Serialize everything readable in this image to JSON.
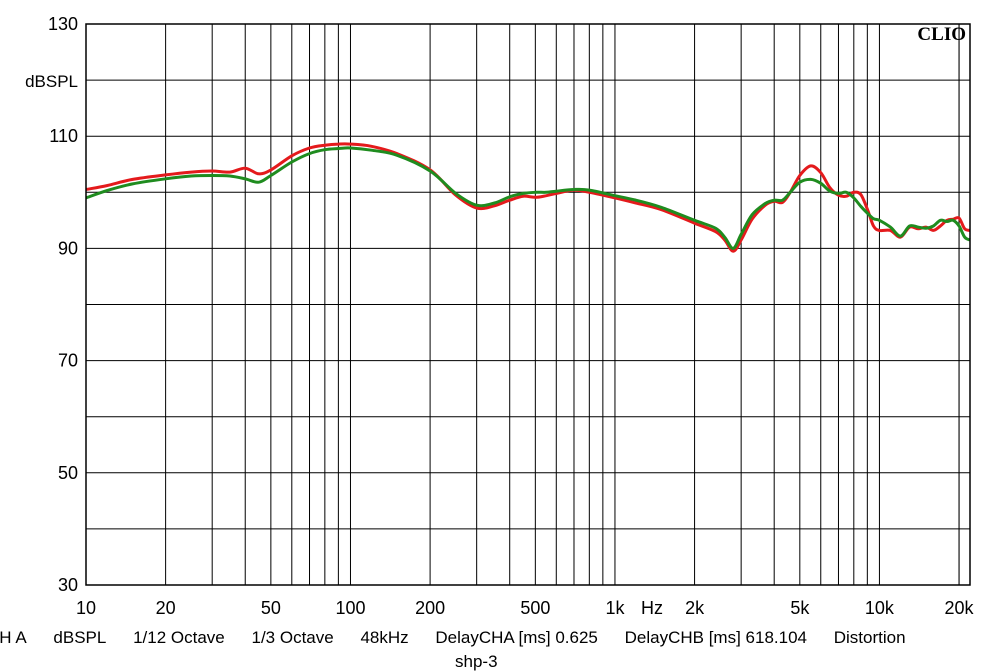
{
  "chart_data": {
    "type": "line",
    "brand": "CLIO",
    "ylabel": "dBSPL",
    "xunit_label": "Hz",
    "x_scale": "log",
    "xlim": [
      10,
      22000
    ],
    "ylim": [
      30,
      130
    ],
    "y_major_ticks": [
      30,
      50,
      70,
      90,
      110,
      130
    ],
    "y_minor_step": 10,
    "x_tick_labels": [
      {
        "v": 10,
        "t": "10"
      },
      {
        "v": 20,
        "t": "20"
      },
      {
        "v": 50,
        "t": "50"
      },
      {
        "v": 100,
        "t": "100"
      },
      {
        "v": 200,
        "t": "200"
      },
      {
        "v": 500,
        "t": "500"
      },
      {
        "v": 1000,
        "t": "1k"
      },
      {
        "v": 2000,
        "t": "2k"
      },
      {
        "v": 5000,
        "t": "5k"
      },
      {
        "v": 10000,
        "t": "10k"
      },
      {
        "v": 20000,
        "t": "20k"
      }
    ],
    "grid": true,
    "series": [
      {
        "color": "#e41a1c",
        "points": [
          [
            10,
            100.5
          ],
          [
            12,
            101.2
          ],
          [
            15,
            102.3
          ],
          [
            20,
            103.1
          ],
          [
            25,
            103.6
          ],
          [
            30,
            103.8
          ],
          [
            35,
            103.6
          ],
          [
            40,
            104.3
          ],
          [
            45,
            103.3
          ],
          [
            50,
            104.0
          ],
          [
            60,
            106.5
          ],
          [
            70,
            107.9
          ],
          [
            80,
            108.4
          ],
          [
            90,
            108.6
          ],
          [
            100,
            108.6
          ],
          [
            120,
            108.2
          ],
          [
            150,
            106.9
          ],
          [
            200,
            104.0
          ],
          [
            250,
            99.5
          ],
          [
            300,
            97.2
          ],
          [
            350,
            97.6
          ],
          [
            400,
            98.6
          ],
          [
            450,
            99.3
          ],
          [
            500,
            99.1
          ],
          [
            550,
            99.4
          ],
          [
            600,
            99.8
          ],
          [
            700,
            100.4
          ],
          [
            800,
            100.0
          ],
          [
            1000,
            99.0
          ],
          [
            1200,
            98.1
          ],
          [
            1500,
            96.9
          ],
          [
            2000,
            94.5
          ],
          [
            2400,
            93.0
          ],
          [
            2600,
            91.5
          ],
          [
            2800,
            89.5
          ],
          [
            3000,
            91.5
          ],
          [
            3300,
            95.2
          ],
          [
            3700,
            97.7
          ],
          [
            4000,
            98.4
          ],
          [
            4300,
            98.2
          ],
          [
            4600,
            100.0
          ],
          [
            5000,
            103.0
          ],
          [
            5500,
            104.7
          ],
          [
            6000,
            103.5
          ],
          [
            6500,
            100.8
          ],
          [
            7000,
            99.5
          ],
          [
            7500,
            99.3
          ],
          [
            8000,
            100.0
          ],
          [
            8500,
            99.6
          ],
          [
            9000,
            97.0
          ],
          [
            9500,
            94.0
          ],
          [
            10000,
            93.2
          ],
          [
            11000,
            93.2
          ],
          [
            12000,
            92.0
          ],
          [
            13000,
            93.8
          ],
          [
            14000,
            93.5
          ],
          [
            15000,
            93.8
          ],
          [
            16000,
            93.2
          ],
          [
            17000,
            94.0
          ],
          [
            18000,
            95.0
          ],
          [
            19000,
            95.2
          ],
          [
            20000,
            95.4
          ],
          [
            21000,
            93.5
          ],
          [
            22000,
            93.2
          ]
        ]
      },
      {
        "color": "#1f8c1f",
        "points": [
          [
            10,
            99.0
          ],
          [
            12,
            100.3
          ],
          [
            15,
            101.5
          ],
          [
            20,
            102.4
          ],
          [
            25,
            102.9
          ],
          [
            30,
            103.0
          ],
          [
            35,
            102.9
          ],
          [
            40,
            102.4
          ],
          [
            45,
            101.8
          ],
          [
            50,
            103.0
          ],
          [
            60,
            105.4
          ],
          [
            70,
            106.9
          ],
          [
            80,
            107.6
          ],
          [
            90,
            107.8
          ],
          [
            100,
            107.9
          ],
          [
            120,
            107.5
          ],
          [
            150,
            106.6
          ],
          [
            200,
            103.8
          ],
          [
            250,
            99.8
          ],
          [
            300,
            97.7
          ],
          [
            350,
            98.1
          ],
          [
            400,
            99.2
          ],
          [
            450,
            99.8
          ],
          [
            500,
            100.0
          ],
          [
            550,
            100.0
          ],
          [
            600,
            100.2
          ],
          [
            700,
            100.5
          ],
          [
            800,
            100.4
          ],
          [
            1000,
            99.4
          ],
          [
            1200,
            98.6
          ],
          [
            1500,
            97.3
          ],
          [
            2000,
            95.0
          ],
          [
            2400,
            93.6
          ],
          [
            2600,
            92.0
          ],
          [
            2800,
            90.0
          ],
          [
            3000,
            92.5
          ],
          [
            3300,
            96.0
          ],
          [
            3700,
            98.0
          ],
          [
            4000,
            98.6
          ],
          [
            4300,
            98.6
          ],
          [
            4600,
            100.0
          ],
          [
            5000,
            101.8
          ],
          [
            5500,
            102.3
          ],
          [
            6000,
            101.6
          ],
          [
            6500,
            100.2
          ],
          [
            7000,
            99.8
          ],
          [
            7500,
            100.0
          ],
          [
            8000,
            99.0
          ],
          [
            8500,
            97.5
          ],
          [
            9000,
            96.3
          ],
          [
            9500,
            95.3
          ],
          [
            10000,
            95.0
          ],
          [
            11000,
            93.8
          ],
          [
            12000,
            92.2
          ],
          [
            13000,
            94.0
          ],
          [
            14000,
            93.8
          ],
          [
            15000,
            93.6
          ],
          [
            16000,
            94.0
          ],
          [
            17000,
            95.0
          ],
          [
            18000,
            94.8
          ],
          [
            19000,
            95.0
          ],
          [
            20000,
            94.0
          ],
          [
            21000,
            92.0
          ],
          [
            22000,
            91.5
          ]
        ]
      }
    ]
  },
  "footer": {
    "items": [
      "CH A",
      "dBSPL",
      "1/12 Octave",
      "1/3 Octave",
      "48kHz",
      "DelayCHA [ms] 0.625",
      "DelayCHB [ms] 618.104",
      "Distortion"
    ],
    "subtitle": "shp-3"
  }
}
